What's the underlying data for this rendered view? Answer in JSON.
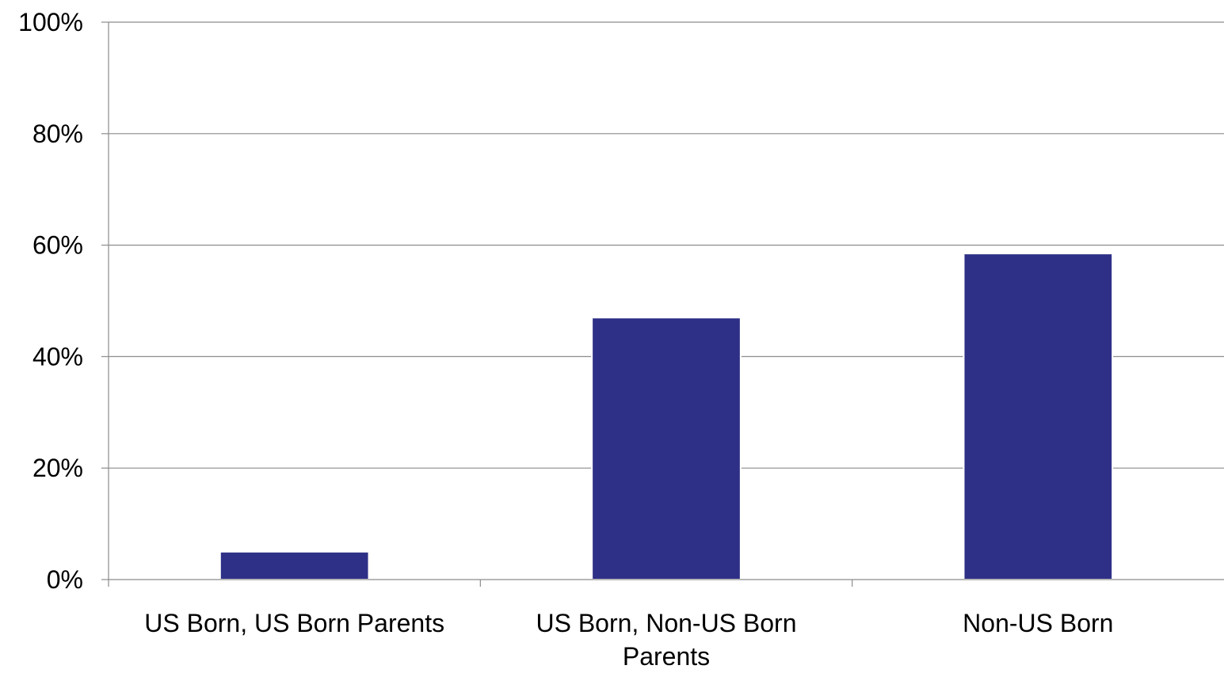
{
  "chart_data": {
    "type": "bar",
    "title": "",
    "xlabel": "",
    "ylabel": "",
    "categories": [
      [
        "US Born, US Born Parents"
      ],
      [
        "US Born, Non-US Born",
        "Parents"
      ],
      [
        "Non-US Born"
      ]
    ],
    "values": [
      5,
      47,
      58.5
    ],
    "ylim": [
      0,
      100
    ],
    "yticks": [
      0,
      20,
      40,
      60,
      80,
      100
    ],
    "ytick_labels": [
      "0%",
      "20%",
      "40%",
      "60%",
      "80%",
      "100%"
    ],
    "grid": true,
    "legend": "none",
    "colors": {
      "bar": "#2E3087",
      "grid": "#8C8C8C",
      "axis": "#8C8C8C",
      "text": "#000000"
    }
  }
}
